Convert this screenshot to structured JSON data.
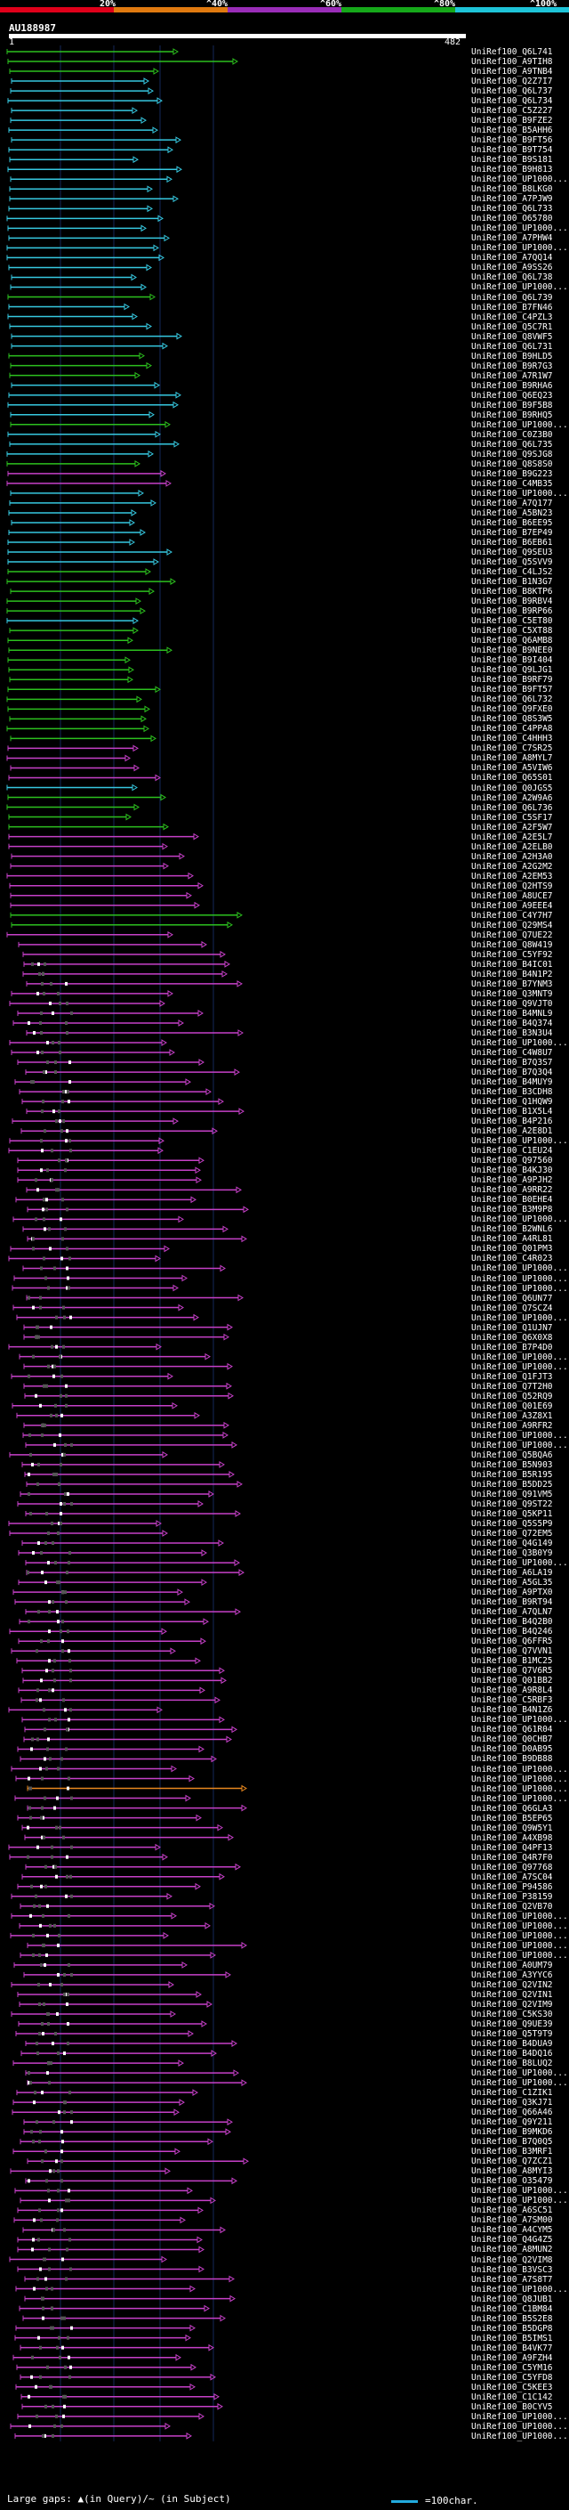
{
  "scale": {
    "labels": [
      "20%",
      "^40%",
      "^60%",
      "^80%",
      "^100%"
    ],
    "colors": [
      "#e0001a",
      "#e07a10",
      "#9a2db8",
      "#16a81a",
      "#1ec4d8"
    ]
  },
  "query": {
    "title": "AU188987",
    "start": "1",
    "end": "482"
  },
  "colors": {
    "cyan": "#36c8e0",
    "green": "#2cc01e",
    "magenta": "#c640c8",
    "orange": "#e8881e",
    "grid": "#14285a"
  },
  "hits": [
    "UniRef100_Q6L741",
    "UniRef100_A9TIH8",
    "UniRef100_A9TNB4",
    "UniRef100_Q2Z7I7",
    "UniRef100_Q6L737",
    "UniRef100_Q6L734",
    "UniRef100_C5Z227",
    "UniRef100_B9FZE2",
    "UniRef100_B5AHH6",
    "UniRef100_B9FT56",
    "UniRef100_B9T754",
    "UniRef100_B9S181",
    "UniRef100_B9H813",
    "UniRef100_UP1000...",
    "UniRef100_B8LKG0",
    "UniRef100_A7PJW9",
    "UniRef100_Q6L733",
    "UniRef100_O65780",
    "UniRef100_UP1000...",
    "UniRef100_A7PHW4",
    "UniRef100_UP1000...",
    "UniRef100_A7QQ14",
    "UniRef100_A9SS26",
    "UniRef100_Q6L738",
    "UniRef100_UP1000...",
    "UniRef100_Q6L739",
    "UniRef100_B7FN46",
    "UniRef100_C4PZL3",
    "UniRef100_Q5C7R1",
    "UniRef100_Q8VWF5",
    "UniRef100_Q6L731",
    "UniRef100_B9HLD5",
    "UniRef100_B9R7G3",
    "UniRef100_A7R1W7",
    "UniRef100_B9RHA6",
    "UniRef100_Q6EQ23",
    "UniRef100_B9F5B8",
    "UniRef100_B9RHQ5",
    "UniRef100_UP1000...",
    "UniRef100_C0Z3B0",
    "UniRef100_Q6L735",
    "UniRef100_Q9SJG8",
    "UniRef100_Q8S8S0",
    "UniRef100_B9G223",
    "UniRef100_C4MB35",
    "UniRef100_UP1000...",
    "UniRef100_A7Q177",
    "UniRef100_A5BN23",
    "UniRef100_B6EE95",
    "UniRef100_B7EP49",
    "UniRef100_B6EB61",
    "UniRef100_Q9SEU3",
    "UniRef100_Q5SVV9",
    "UniRef100_C4LJS2",
    "UniRef100_B1N3G7",
    "UniRef100_B8KTP6",
    "UniRef100_B9RBV4",
    "UniRef100_B9RP66",
    "UniRef100_C5ET80",
    "UniRef100_C5XT88",
    "UniRef100_Q6AMB8",
    "UniRef100_B9NEE0",
    "UniRef100_B9I404",
    "UniRef100_Q9LJG1",
    "UniRef100_B9RF79",
    "UniRef100_B9FT57",
    "UniRef100_Q6L732",
    "UniRef100_Q9FXE0",
    "UniRef100_Q8S3W5",
    "UniRef100_C4PPA8",
    "UniRef100_C4HHH3",
    "UniRef100_C7SR25",
    "UniRef100_A8MYL7",
    "UniRef100_A5VIW6",
    "UniRef100_Q65S01",
    "UniRef100_Q0JGS5",
    "UniRef100_A2W9A6",
    "UniRef100_Q6L736",
    "UniRef100_C5SF17",
    "UniRef100_A2F5W7",
    "UniRef100_A2E5L7",
    "UniRef100_A2ELB0",
    "UniRef100_A2H3A0",
    "UniRef100_A2G2M2",
    "UniRef100_A2EM53",
    "UniRef100_Q2HTS9",
    "UniRef100_A8UCE7",
    "UniRef100_A9EEE4",
    "UniRef100_C4Y7H7",
    "UniRef100_Q29MS4",
    "UniRef100_Q7UE22",
    "UniRef100_Q8W419",
    "UniRef100_C5YF92",
    "UniRef100_B4IC01",
    "UniRef100_B4N1P2",
    "UniRef100_B7YNM3",
    "UniRef100_Q3MNT9",
    "UniRef100_Q9VJT0",
    "UniRef100_B4MNL9",
    "UniRef100_B4Q374",
    "UniRef100_B3N3U4",
    "UniRef100_UP1000...",
    "UniRef100_C4W8U7",
    "UniRef100_B7Q3S7",
    "UniRef100_B7Q3Q4",
    "UniRef100_B4MUY9",
    "UniRef100_B3CDH8",
    "UniRef100_Q1HQW9",
    "UniRef100_B1X5L4",
    "UniRef100_B4P216",
    "UniRef100_A2E8D1",
    "UniRef100_UP1000...",
    "UniRef100_C1EU24",
    "UniRef100_Q97560",
    "UniRef100_B4KJ30",
    "UniRef100_A9PJH2",
    "UniRef100_A9RR22",
    "UniRef100_B0EHE4",
    "UniRef100_B3M9P8",
    "UniRef100_UP1000...",
    "UniRef100_B2WNL6",
    "UniRef100_A4RL81",
    "UniRef100_Q01PM3",
    "UniRef100_C4R023",
    "UniRef100_UP1000...",
    "UniRef100_UP1000...",
    "UniRef100_UP1000...",
    "UniRef100_Q6UN77",
    "UniRef100_Q7SCZ4",
    "UniRef100_UP1000...",
    "UniRef100_Q1UJN7",
    "UniRef100_Q6X0X8",
    "UniRef100_B7P4D0",
    "UniRef100_UP1000...",
    "UniRef100_UP1000...",
    "UniRef100_Q1FJT3",
    "UniRef100_Q7T2H0",
    "UniRef100_Q52RQ9",
    "UniRef100_Q01E69",
    "UniRef100_A3Z8X1",
    "UniRef100_A9RFR2",
    "UniRef100_UP1000...",
    "UniRef100_UP1000...",
    "UniRef100_Q5BQA6",
    "UniRef100_B5N903",
    "UniRef100_B5R195",
    "UniRef100_B5DD25",
    "UniRef100_Q91VM5",
    "UniRef100_Q9ST22",
    "UniRef100_Q5KP11",
    "UniRef100_Q5S5P9",
    "UniRef100_Q72EM5",
    "UniRef100_Q4G149",
    "UniRef100_Q3B0Y9",
    "UniRef100_UP1000...",
    "UniRef100_A6LA19",
    "UniRef100_A5GL35",
    "UniRef100_A9PTX0",
    "UniRef100_B9RT94",
    "UniRef100_A7QLN7",
    "UniRef100_B4Q2B0",
    "UniRef100_B4Q246",
    "UniRef100_Q6FFR5",
    "UniRef100_Q7VVN1",
    "UniRef100_B1MC25",
    "UniRef100_Q7V6R5",
    "UniRef100_Q01BB2",
    "UniRef100_A9R8L4",
    "UniRef100_C5RBF3",
    "UniRef100_B4N1Z6",
    "UniRef100_UP1000...",
    "UniRef100_Q61R04",
    "UniRef100_Q0CHB7",
    "UniRef100_D0AB95",
    "UniRef100_B9DB88",
    "UniRef100_UP1000...",
    "UniRef100_UP1000...",
    "UniRef100_UP1000...",
    "UniRef100_UP1000...",
    "UniRef100_Q6GLA3",
    "UniRef100_B5EP65",
    "UniRef100_Q9W5Y1",
    "UniRef100_A4XB98",
    "UniRef100_Q4PF13",
    "UniRef100_Q4R7F0",
    "UniRef100_Q97768",
    "UniRef100_A7SC04",
    "UniRef100_P94586",
    "UniRef100_P38159",
    "UniRef100_Q2VB70",
    "UniRef100_UP1000...",
    "UniRef100_UP1000...",
    "UniRef100_UP1000...",
    "UniRef100_UP1000...",
    "UniRef100_UP1000...",
    "UniRef100_A0UM79",
    "UniRef100_A3YYC6",
    "UniRef100_Q2VIN2",
    "UniRef100_Q2VIN1",
    "UniRef100_Q2VIM9",
    "UniRef100_C5KS30",
    "UniRef100_Q9UE39",
    "UniRef100_Q5T9T9",
    "UniRef100_B4DUA9",
    "UniRef100_B4DQ16",
    "UniRef100_B8LUQ2",
    "UniRef100_UP1000...",
    "UniRef100_UP1000...",
    "UniRef100_C1ZIK1",
    "UniRef100_Q3KJ71",
    "UniRef100_Q66A46",
    "UniRef100_Q9Y211",
    "UniRef100_B9MKD6",
    "UniRef100_B7Q0Q5",
    "UniRef100_B3MRF1",
    "UniRef100_Q7ZCZ1",
    "UniRef100_A8MYI3",
    "UniRef100_O35479",
    "UniRef100_UP1000...",
    "UniRef100_UP1000...",
    "UniRef100_A6SC51",
    "UniRef100_A7SM00",
    "UniRef100_A4CYM5",
    "UniRef100_Q4G4Z5",
    "UniRef100_A8MUN2",
    "UniRef100_Q2VIM8",
    "UniRef100_B3VSC3",
    "UniRef100_A7S8T7",
    "UniRef100_UP1000...",
    "UniRef100_Q8JUB1",
    "UniRef100_C1BM84",
    "UniRef100_B5S2E8",
    "UniRef100_B5DGP8",
    "UniRef100_B5IMS1",
    "UniRef100_B4VK77",
    "UniRef100_A9FZH4",
    "UniRef100_C5YM16",
    "UniRef100_C5YFD8",
    "UniRef100_C5KEE3",
    "UniRef100_C1C142",
    "UniRef100_B0CYV5",
    "UniRef100_UP1000...",
    "UniRef100_UP1000...",
    "UniRef100_UP1000..."
  ],
  "legend": {
    "text": "Large gaps: ▲(in Query)/~ (in Subject)",
    "scale_text": "=100char."
  }
}
